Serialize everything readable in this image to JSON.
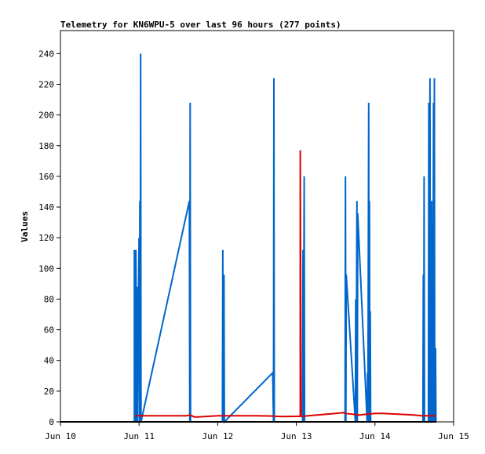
{
  "chart_data": {
    "type": "line",
    "title": "Telemetry for KN6WPU-5 over last 96 hours (277 points)",
    "xlabel": "",
    "ylabel": "Values",
    "x_ticks": [
      "Jun 10",
      "Jun 11",
      "Jun 12",
      "Jun 13",
      "Jun 14",
      "Jun 15"
    ],
    "y_ticks": [
      0,
      20,
      40,
      60,
      80,
      100,
      120,
      140,
      160,
      180,
      200,
      220,
      240
    ],
    "xlim": [
      0,
      5
    ],
    "ylim": [
      0,
      255
    ],
    "grid": false,
    "x_unit": "days since Jun 10",
    "series": [
      {
        "color": "#0066cc",
        "points": [
          [
            0.94,
            0
          ],
          [
            0.94,
            112
          ],
          [
            0.95,
            0
          ],
          [
            0.96,
            112
          ],
          [
            0.97,
            0
          ],
          [
            0.975,
            88
          ],
          [
            0.98,
            0
          ],
          [
            0.99,
            72
          ],
          [
            1.0,
            120
          ],
          [
            1.005,
            0
          ],
          [
            1.01,
            144
          ],
          [
            1.015,
            0
          ],
          [
            1.02,
            240
          ],
          [
            1.025,
            0
          ],
          [
            1.64,
            144
          ],
          [
            1.645,
            0
          ],
          [
            1.65,
            208
          ],
          [
            1.655,
            0
          ],
          [
            2.06,
            0
          ],
          [
            2.065,
            112
          ],
          [
            2.07,
            0
          ],
          [
            2.08,
            96
          ],
          [
            2.085,
            0
          ],
          [
            2.7,
            32
          ],
          [
            2.71,
            0
          ],
          [
            2.715,
            224
          ],
          [
            2.72,
            0
          ],
          [
            3.08,
            0
          ],
          [
            3.085,
            112
          ],
          [
            3.09,
            0
          ],
          [
            3.1,
            160
          ],
          [
            3.105,
            0
          ],
          [
            3.62,
            0
          ],
          [
            3.625,
            160
          ],
          [
            3.63,
            0
          ],
          [
            3.635,
            96
          ],
          [
            3.75,
            0
          ],
          [
            3.755,
            80
          ],
          [
            3.76,
            0
          ],
          [
            3.77,
            144
          ],
          [
            3.775,
            0
          ],
          [
            3.78,
            136
          ],
          [
            3.9,
            0
          ],
          [
            3.905,
            32
          ],
          [
            3.91,
            0
          ],
          [
            3.92,
            208
          ],
          [
            3.925,
            0
          ],
          [
            3.93,
            144
          ],
          [
            3.935,
            0
          ],
          [
            3.94,
            72
          ],
          [
            3.945,
            0
          ],
          [
            4.61,
            0
          ],
          [
            4.615,
            96
          ],
          [
            4.62,
            0
          ],
          [
            4.625,
            160
          ],
          [
            4.63,
            0
          ],
          [
            4.68,
            0
          ],
          [
            4.685,
            208
          ],
          [
            4.69,
            0
          ],
          [
            4.7,
            224
          ],
          [
            4.705,
            0
          ],
          [
            4.71,
            32
          ],
          [
            4.715,
            0
          ],
          [
            4.72,
            144
          ],
          [
            4.725,
            0
          ],
          [
            4.73,
            128
          ],
          [
            4.735,
            0
          ],
          [
            4.745,
            208
          ],
          [
            4.75,
            0
          ],
          [
            4.755,
            224
          ],
          [
            4.76,
            0
          ],
          [
            4.77,
            48
          ],
          [
            4.775,
            0
          ]
        ]
      },
      {
        "color": "#dd0000",
        "points": [
          [
            0.95,
            4
          ],
          [
            1.3,
            4
          ],
          [
            1.6,
            4
          ],
          [
            1.65,
            4.5
          ],
          [
            1.7,
            3.2
          ],
          [
            1.75,
            3.2
          ],
          [
            2.0,
            4
          ],
          [
            2.5,
            4
          ],
          [
            2.7,
            3.8
          ],
          [
            2.8,
            3.5
          ],
          [
            3.0,
            3.6
          ],
          [
            3.05,
            3.6
          ],
          [
            3.05,
            177
          ],
          [
            3.06,
            3.6
          ],
          [
            3.15,
            4
          ],
          [
            3.5,
            5.5
          ],
          [
            3.6,
            6
          ],
          [
            3.62,
            5.5
          ],
          [
            3.8,
            4.5
          ],
          [
            3.9,
            5
          ],
          [
            4.0,
            5.5
          ],
          [
            4.1,
            5.5
          ],
          [
            4.3,
            5
          ],
          [
            4.5,
            4.5
          ],
          [
            4.6,
            4
          ],
          [
            4.77,
            4
          ]
        ]
      },
      {
        "color": "#000000",
        "points": [
          [
            0.0,
            0
          ],
          [
            4.78,
            0
          ]
        ]
      }
    ]
  }
}
